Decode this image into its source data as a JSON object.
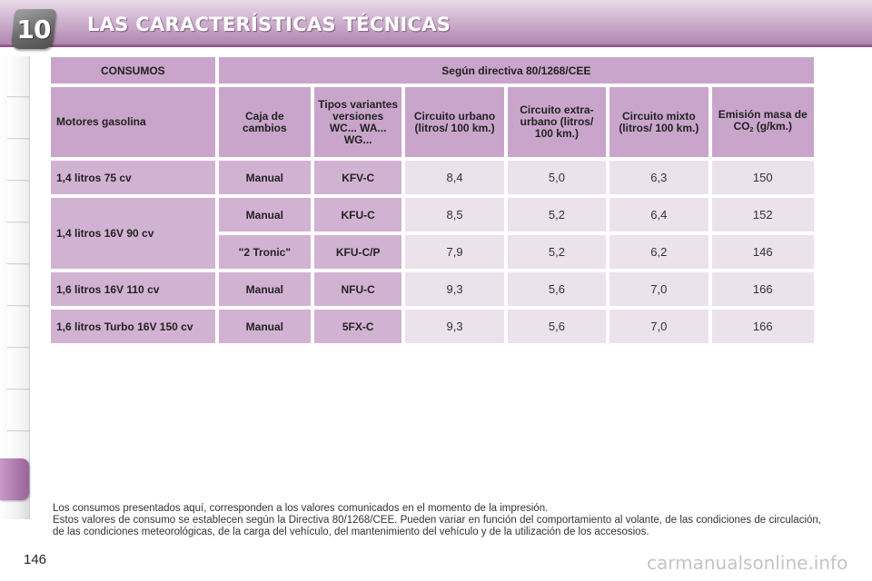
{
  "header": {
    "chapter_number": "10",
    "title": "LAS CARACTERÍSTICAS TÉCNICAS"
  },
  "table": {
    "header_row": {
      "left": "CONSUMOS",
      "right": "Según directiva 80/1268/CEE"
    },
    "columns": {
      "engine": "Motores gasolina",
      "gearbox": "Caja de cambios",
      "types": "Tipos variantes versiones WC... WA... WG...",
      "urban": "Circuito urbano (litros/ 100 km.)",
      "extra_urban": "Circuito extra-urbano (litros/ 100 km.)",
      "mixed": "Circuito mixto (litros/ 100 km.)",
      "co2_prefix": "Emisión masa de CO",
      "co2_sub": "2",
      "co2_suffix": " (g/km.)"
    },
    "rows": [
      {
        "engine": "1,4 litros 75 cv",
        "gearbox": "Manual",
        "type": "KFV-C",
        "urban": "8,4",
        "extra_urban": "5,0",
        "mixed": "6,3",
        "co2": "150"
      },
      {
        "engine": "1,4 litros 16V 90 cv",
        "gearbox": "Manual",
        "type": "KFU-C",
        "urban": "8,5",
        "extra_urban": "5,2",
        "mixed": "6,4",
        "co2": "152"
      },
      {
        "gearbox": "\"2 Tronic\"",
        "type": "KFU-C/P",
        "urban": "7,9",
        "extra_urban": "5,2",
        "mixed": "6,2",
        "co2": "146"
      },
      {
        "engine": "1,6 litros 16V 110 cv",
        "gearbox": "Manual",
        "type": "NFU-C",
        "urban": "9,3",
        "extra_urban": "5,6",
        "mixed": "7,0",
        "co2": "166"
      },
      {
        "engine": "1,6 litros Turbo 16V 150 cv",
        "gearbox": "Manual",
        "type": "5FX-C",
        "urban": "9,3",
        "extra_urban": "5,6",
        "mixed": "7,0",
        "co2": "166"
      }
    ]
  },
  "notes": {
    "line1": "Los consumos presentados aquí, corresponden a los valores comunicados en el momento de la impresión.",
    "line2": "Estos valores de consumo se establecen según la Directiva 80/1268/CEE. Pueden variar en función del comportamiento al volante, de las condiciones de circulación, de las condiciones meteorológicas, de la carga del vehículo, del mantenimiento del vehículo y de la utilización de los accesosios."
  },
  "page_number": "146",
  "watermark": "carmanualsonline.info",
  "colors": {
    "header_purple": "#b184b0",
    "cell_header": "#c9a5cb",
    "cell_label": "#d2b2d3",
    "cell_value": "#ebe2ec"
  }
}
